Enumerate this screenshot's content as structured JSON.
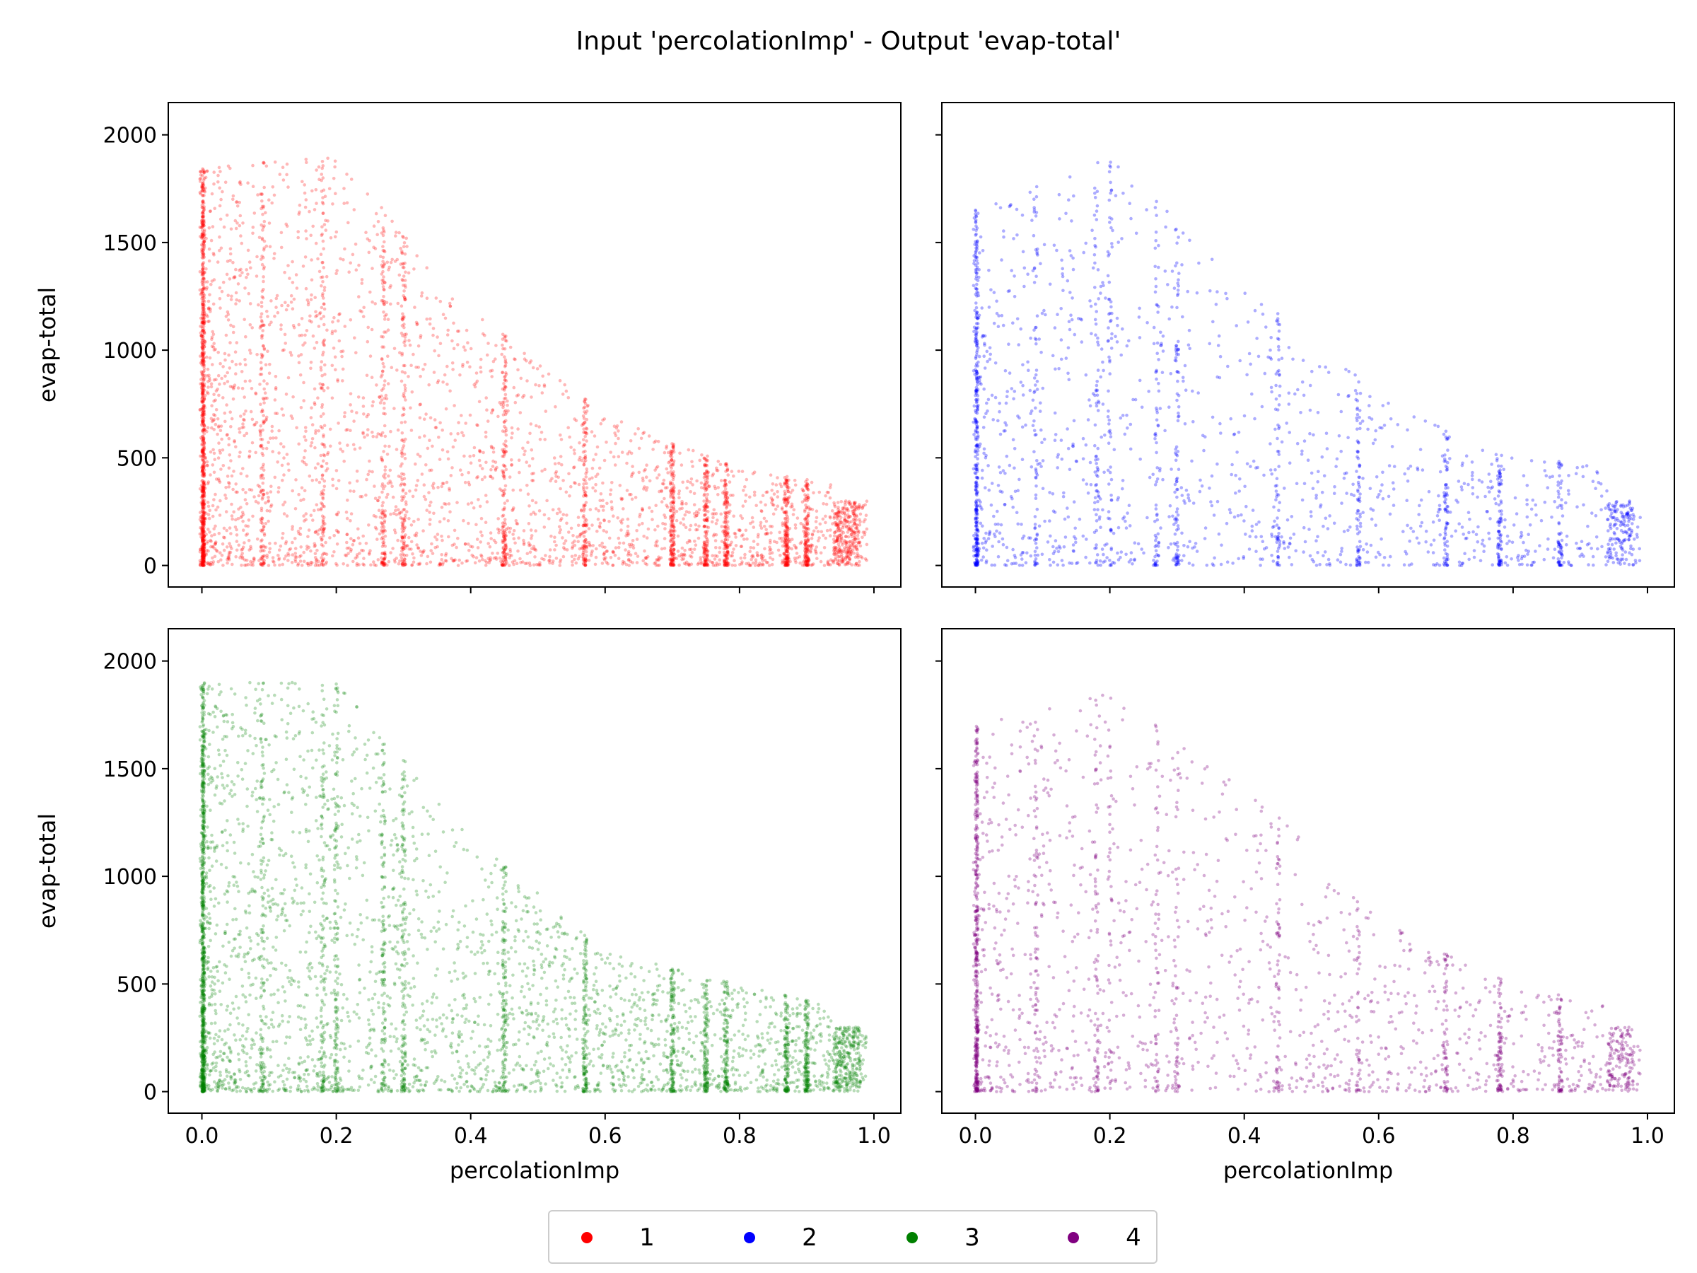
{
  "figure": {
    "title": "Input 'percolationImp' - Output 'evap-total'"
  },
  "legend": {
    "placement": "bottom-center",
    "entries": [
      {
        "label": "1",
        "color": "#ff0000"
      },
      {
        "label": "2",
        "color": "#0000ff"
      },
      {
        "label": "3",
        "color": "#008000"
      },
      {
        "label": "4",
        "color": "#800080"
      }
    ]
  },
  "chart_data": [
    {
      "type": "scatter",
      "panel": "top-left",
      "series": [
        {
          "name": "1",
          "color": "#ff0000"
        }
      ],
      "xlabel": "",
      "ylabel": "evap-total",
      "xlim": [
        -0.05,
        1.04
      ],
      "ylim": [
        -100,
        2150
      ],
      "xticks": [
        0.0,
        0.2,
        0.4,
        0.6,
        0.8,
        1.0
      ],
      "xtick_labels": [],
      "yticks": [
        0,
        500,
        1000,
        1500,
        2000
      ],
      "ytick_labels": [
        "0",
        "500",
        "1000",
        "1500",
        "2000"
      ],
      "grid": false,
      "point_count_approx": 12000,
      "x_clusters": [
        0.0,
        0.09,
        0.18,
        0.27,
        0.3,
        0.45,
        0.57,
        0.7,
        0.75,
        0.78,
        0.87,
        0.9,
        0.95,
        0.96
      ],
      "max_y": 2050,
      "envelope": [
        [
          0.0,
          1850
        ],
        [
          0.2,
          1900
        ],
        [
          0.4,
          1200
        ],
        [
          0.6,
          700
        ],
        [
          0.8,
          450
        ],
        [
          1.0,
          350
        ]
      ]
    },
    {
      "type": "scatter",
      "panel": "top-right",
      "series": [
        {
          "name": "2",
          "color": "#0000ff"
        }
      ],
      "xlabel": "",
      "ylabel": "",
      "xlim": [
        -0.05,
        1.04
      ],
      "ylim": [
        -100,
        2150
      ],
      "xticks": [
        0.0,
        0.2,
        0.4,
        0.6,
        0.8,
        1.0
      ],
      "xtick_labels": [],
      "yticks": [
        0,
        500,
        1000,
        1500,
        2000
      ],
      "ytick_labels": [],
      "grid": false,
      "point_count_approx": 3500,
      "x_clusters": [
        0.0,
        0.09,
        0.18,
        0.2,
        0.27,
        0.3,
        0.45,
        0.57,
        0.7,
        0.78,
        0.87,
        0.95,
        0.96
      ],
      "max_y": 1920,
      "envelope": [
        [
          0.0,
          1650
        ],
        [
          0.2,
          1900
        ],
        [
          0.4,
          1300
        ],
        [
          0.6,
          800
        ],
        [
          0.8,
          500
        ],
        [
          1.0,
          450
        ]
      ]
    },
    {
      "type": "scatter",
      "panel": "bottom-left",
      "series": [
        {
          "name": "3",
          "color": "#008000"
        }
      ],
      "xlabel": "percolationImp",
      "ylabel": "evap-total",
      "xlim": [
        -0.05,
        1.04
      ],
      "ylim": [
        -100,
        2150
      ],
      "xticks": [
        0.0,
        0.2,
        0.4,
        0.6,
        0.8,
        1.0
      ],
      "xtick_labels": [
        "0.0",
        "0.2",
        "0.4",
        "0.6",
        "0.8",
        "1.0"
      ],
      "yticks": [
        0,
        500,
        1000,
        1500,
        2000
      ],
      "ytick_labels": [
        "0",
        "500",
        "1000",
        "1500",
        "2000"
      ],
      "grid": false,
      "point_count_approx": 12000,
      "x_clusters": [
        0.0,
        0.09,
        0.18,
        0.2,
        0.27,
        0.3,
        0.45,
        0.57,
        0.7,
        0.75,
        0.78,
        0.87,
        0.9,
        0.95,
        0.96
      ],
      "max_y": 2020,
      "envelope": [
        [
          0.0,
          1900
        ],
        [
          0.2,
          1900
        ],
        [
          0.4,
          1200
        ],
        [
          0.6,
          650
        ],
        [
          0.8,
          500
        ],
        [
          1.0,
          350
        ]
      ]
    },
    {
      "type": "scatter",
      "panel": "bottom-right",
      "series": [
        {
          "name": "4",
          "color": "#800080"
        }
      ],
      "xlabel": "percolationImp",
      "ylabel": "",
      "xlim": [
        -0.05,
        1.04
      ],
      "ylim": [
        -100,
        2150
      ],
      "xticks": [
        0.0,
        0.2,
        0.4,
        0.6,
        0.8,
        1.0
      ],
      "xtick_labels": [
        "0.0",
        "0.2",
        "0.4",
        "0.6",
        "0.8",
        "1.0"
      ],
      "yticks": [
        0,
        500,
        1000,
        1500,
        2000
      ],
      "ytick_labels": [],
      "grid": false,
      "point_count_approx": 3500,
      "x_clusters": [
        0.0,
        0.09,
        0.18,
        0.2,
        0.27,
        0.3,
        0.45,
        0.57,
        0.7,
        0.78,
        0.87,
        0.95,
        0.96
      ],
      "max_y": 1880,
      "envelope": [
        [
          0.0,
          1700
        ],
        [
          0.2,
          1850
        ],
        [
          0.4,
          1450
        ],
        [
          0.6,
          800
        ],
        [
          0.8,
          500
        ],
        [
          1.0,
          350
        ]
      ]
    }
  ]
}
